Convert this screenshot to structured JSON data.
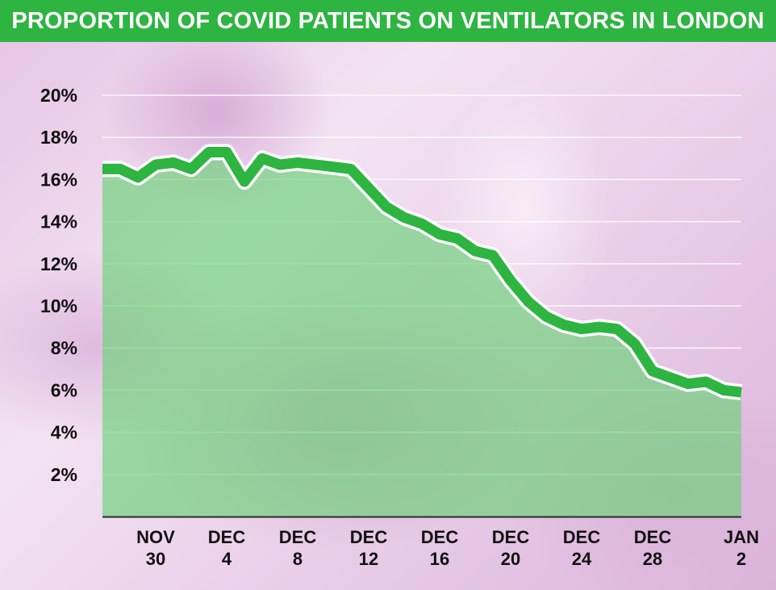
{
  "title": "PROPORTION OF COVID PATIENTS ON VENTILATORS IN LONDON",
  "colors": {
    "title_bar": "#2db441",
    "line": "#2db441",
    "area_fill": "#6ed27a",
    "line_outline": "#ffffff",
    "text": "#111111"
  },
  "chart_data": {
    "type": "area",
    "title": "PROPORTION OF COVID PATIENTS ON VENTILATORS IN LONDON",
    "xlabel": "",
    "ylabel": "",
    "ylim": [
      0,
      20
    ],
    "y_ticks": [
      "2%",
      "4%",
      "6%",
      "8%",
      "10%",
      "12%",
      "14%",
      "16%",
      "18%",
      "20%"
    ],
    "y_tick_values": [
      2,
      4,
      6,
      8,
      10,
      12,
      14,
      16,
      18,
      20
    ],
    "grid": true,
    "x_ticks": [
      {
        "line1": "NOV",
        "line2": "30",
        "index": 3
      },
      {
        "line1": "DEC",
        "line2": "4",
        "index": 7
      },
      {
        "line1": "DEC",
        "line2": "8",
        "index": 11
      },
      {
        "line1": "DEC",
        "line2": "12",
        "index": 15
      },
      {
        "line1": "DEC",
        "line2": "16",
        "index": 19
      },
      {
        "line1": "DEC",
        "line2": "20",
        "index": 23
      },
      {
        "line1": "DEC",
        "line2": "24",
        "index": 27
      },
      {
        "line1": "DEC",
        "line2": "28",
        "index": 31
      },
      {
        "line1": "JAN",
        "line2": "2",
        "index": 36
      }
    ],
    "x": [
      "Nov 27",
      "Nov 28",
      "Nov 29",
      "Nov 30",
      "Dec 1",
      "Dec 2",
      "Dec 3",
      "Dec 4",
      "Dec 5",
      "Dec 6",
      "Dec 7",
      "Dec 8",
      "Dec 9",
      "Dec 10",
      "Dec 11",
      "Dec 12",
      "Dec 13",
      "Dec 14",
      "Dec 15",
      "Dec 16",
      "Dec 17",
      "Dec 18",
      "Dec 19",
      "Dec 20",
      "Dec 21",
      "Dec 22",
      "Dec 23",
      "Dec 24",
      "Dec 25",
      "Dec 26",
      "Dec 27",
      "Dec 28",
      "Dec 29",
      "Dec 30",
      "Dec 31",
      "Jan 1",
      "Jan 2"
    ],
    "series": [
      {
        "values": [
          16.5,
          16.5,
          16.1,
          16.7,
          16.8,
          16.5,
          17.3,
          17.3,
          15.9,
          17.0,
          16.7,
          16.8,
          16.7,
          16.6,
          16.5,
          15.6,
          14.7,
          14.2,
          13.9,
          13.4,
          13.2,
          12.6,
          12.4,
          11.2,
          10.2,
          9.5,
          9.1,
          8.9,
          9.0,
          8.9,
          8.2,
          6.9,
          6.6,
          6.3,
          6.4,
          6.0,
          5.9
        ]
      }
    ]
  }
}
